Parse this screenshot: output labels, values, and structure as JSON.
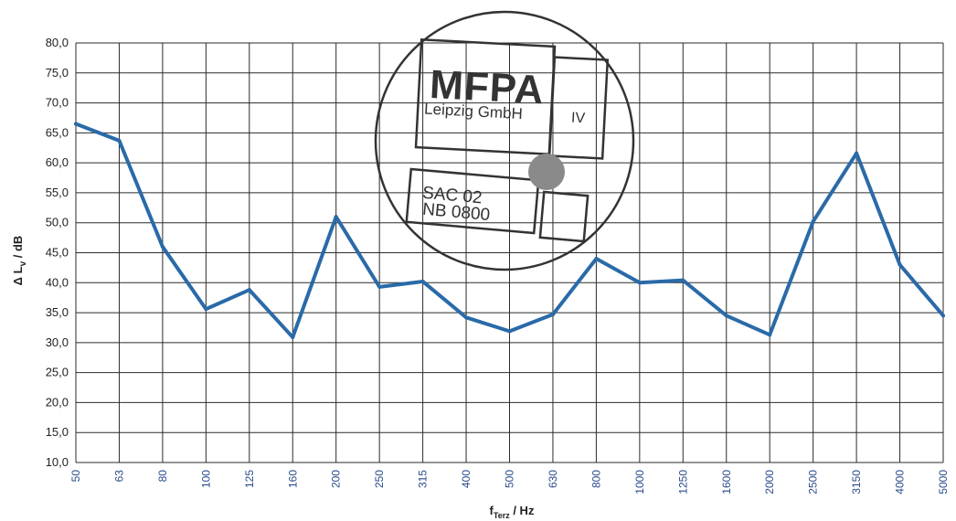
{
  "chart_data": {
    "type": "line",
    "categories": [
      "50",
      "63",
      "80",
      "100",
      "125",
      "160",
      "200",
      "250",
      "315",
      "400",
      "500",
      "630",
      "800",
      "1000",
      "1250",
      "1600",
      "2000",
      "2500",
      "3150",
      "4000",
      "5000"
    ],
    "series": [
      {
        "values": [
          66.5,
          63.7,
          46.0,
          35.6,
          38.8,
          30.9,
          51.0,
          39.3,
          40.2,
          34.2,
          31.9,
          34.7,
          44.0,
          40.0,
          40.4,
          34.5,
          31.3,
          50.2,
          61.6,
          43.0,
          34.5
        ]
      }
    ],
    "ylim": [
      10,
      80
    ],
    "yticks": [
      "10,0",
      "15,0",
      "20,0",
      "25,0",
      "30,0",
      "35,0",
      "40,0",
      "45,0",
      "50,0",
      "55,0",
      "60,0",
      "65,0",
      "70,0",
      "75,0",
      "80,0"
    ],
    "ylabel": "Δ Lv / dB",
    "xlabel": "fTerz / Hz",
    "grid": true,
    "legend": "none"
  },
  "colors": {
    "series": "#2a6aa8",
    "grid": "#2b2b2b",
    "stamp": "#333333"
  },
  "stamp": {
    "logo": "MFPA",
    "company": "Leipzig GmbH",
    "group": "IV",
    "code_1": "SAC 02",
    "code_2": "NB 0800"
  }
}
